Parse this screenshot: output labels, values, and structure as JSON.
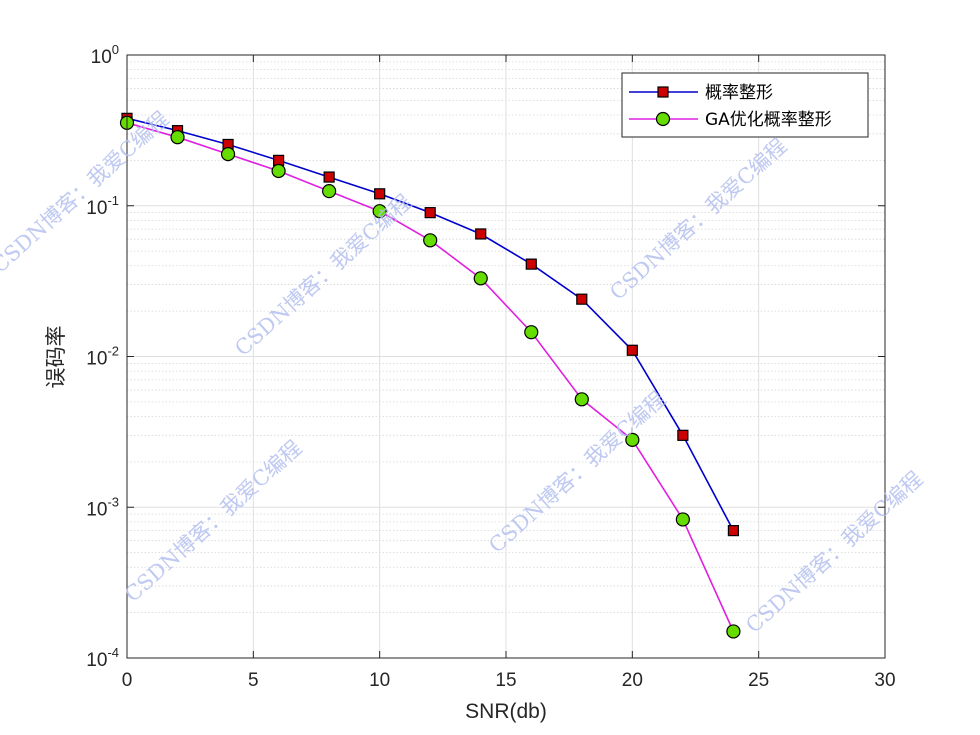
{
  "chart_data": {
    "type": "line",
    "title": "",
    "xlabel": "SNR(db)",
    "ylabel": "误码率",
    "xlim": [
      0,
      30
    ],
    "ylim": [
      0.0001,
      1
    ],
    "yscale": "log",
    "grid": true,
    "legend_position": "top-right",
    "x_ticks": [
      0,
      5,
      10,
      15,
      20,
      25,
      30
    ],
    "y_ticks": [
      {
        "base": "10",
        "exp": "0",
        "value": 1
      },
      {
        "base": "10",
        "exp": "-1",
        "value": 0.1
      },
      {
        "base": "10",
        "exp": "-2",
        "value": 0.01
      },
      {
        "base": "10",
        "exp": "-3",
        "value": 0.001
      },
      {
        "base": "10",
        "exp": "-4",
        "value": 0.0001
      }
    ],
    "series": [
      {
        "name": "概率整形",
        "color": "#0000cc",
        "marker": "square",
        "marker_fill": "#cc0000",
        "x": [
          0,
          2,
          4,
          6,
          8,
          10,
          12,
          14,
          16,
          18,
          20,
          22,
          24
        ],
        "y": [
          0.38,
          0.315,
          0.255,
          0.2,
          0.155,
          0.12,
          0.09,
          0.065,
          0.041,
          0.024,
          0.011,
          0.003,
          0.0007
        ]
      },
      {
        "name": "GA优化概率整形",
        "color": "#e020e0",
        "marker": "circle",
        "marker_fill": "#66dd00",
        "x": [
          0,
          2,
          4,
          6,
          8,
          10,
          12,
          14,
          16,
          18,
          20,
          22,
          24
        ],
        "y": [
          0.355,
          0.285,
          0.22,
          0.17,
          0.125,
          0.092,
          0.059,
          0.033,
          0.0145,
          0.0052,
          0.0028,
          0.00083,
          0.00015
        ]
      }
    ]
  },
  "watermark_text": "CSDN博客：我爱C编程"
}
